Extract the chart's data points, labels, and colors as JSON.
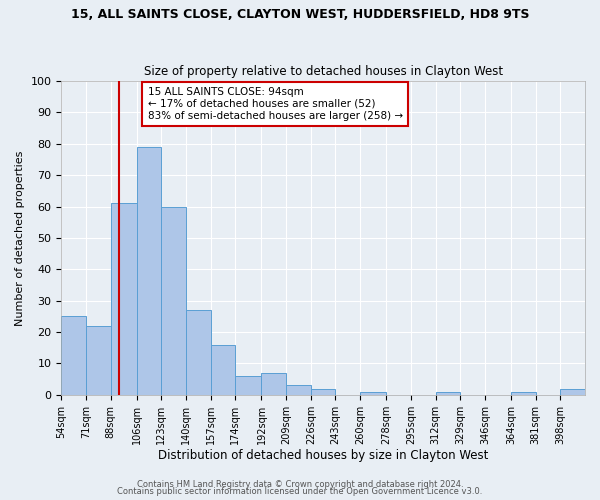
{
  "title1": "15, ALL SAINTS CLOSE, CLAYTON WEST, HUDDERSFIELD, HD8 9TS",
  "title2": "Size of property relative to detached houses in Clayton West",
  "xlabel": "Distribution of detached houses by size in Clayton West",
  "ylabel": "Number of detached properties",
  "bin_labels": [
    "54sqm",
    "71sqm",
    "88sqm",
    "106sqm",
    "123sqm",
    "140sqm",
    "157sqm",
    "174sqm",
    "192sqm",
    "209sqm",
    "226sqm",
    "243sqm",
    "260sqm",
    "278sqm",
    "295sqm",
    "312sqm",
    "329sqm",
    "346sqm",
    "364sqm",
    "381sqm",
    "398sqm"
  ],
  "bin_edges": [
    54,
    71,
    88,
    106,
    123,
    140,
    157,
    174,
    192,
    209,
    226,
    243,
    260,
    278,
    295,
    312,
    329,
    346,
    364,
    381,
    398
  ],
  "bar_heights": [
    25,
    22,
    61,
    79,
    60,
    27,
    16,
    6,
    7,
    3,
    2,
    0,
    1,
    0,
    0,
    1,
    0,
    0,
    1,
    0,
    2
  ],
  "bar_color": "#aec6e8",
  "bar_edge_color": "#5a9fd4",
  "vline_x": 94,
  "vline_color": "#cc0000",
  "annotation_line1": "15 ALL SAINTS CLOSE: 94sqm",
  "annotation_line2": "← 17% of detached houses are smaller (52)",
  "annotation_line3": "83% of semi-detached houses are larger (258) →",
  "annotation_box_color": "#cc0000",
  "ylim": [
    0,
    100
  ],
  "yticks": [
    0,
    10,
    20,
    30,
    40,
    50,
    60,
    70,
    80,
    90,
    100
  ],
  "background_color": "#e8eef4",
  "plot_bg_color": "#e8eef4",
  "footer1": "Contains HM Land Registry data © Crown copyright and database right 2024.",
  "footer2": "Contains public sector information licensed under the Open Government Licence v3.0."
}
